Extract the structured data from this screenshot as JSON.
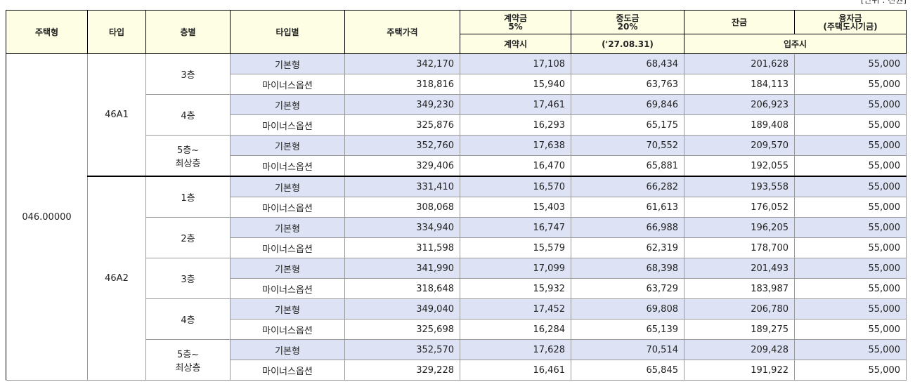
{
  "unit": "[단위 : 천원]",
  "header": {
    "house_type": "주택형",
    "type": "타입",
    "floor": "층별",
    "option": "타입별",
    "price": "주택가격",
    "deposit": "계약금",
    "deposit_rate": "5%",
    "middle": "중도금",
    "middle_rate": "20%",
    "balance": "잔금",
    "loan": "융자금",
    "loan_note": "(주택도시기금)",
    "deposit_when": "계약시",
    "middle_when": "('27.08.31)",
    "move_in": "입주시"
  },
  "house_type": "046.00000",
  "groups": [
    {
      "type": "46A1",
      "floors": [
        {
          "floor": [
            "3층"
          ],
          "rows": [
            {
              "option": "기본형",
              "values": [
                "342,170",
                "17,108",
                "68,434",
                "201,628",
                "55,000"
              ]
            },
            {
              "option": "마이너스옵션",
              "values": [
                "318,816",
                "15,940",
                "63,763",
                "184,113",
                "55,000"
              ]
            }
          ]
        },
        {
          "floor": [
            "4층"
          ],
          "rows": [
            {
              "option": "기본형",
              "values": [
                "349,230",
                "17,461",
                "69,846",
                "206,923",
                "55,000"
              ]
            },
            {
              "option": "마이너스옵션",
              "values": [
                "325,876",
                "16,293",
                "65,175",
                "189,408",
                "55,000"
              ]
            }
          ]
        },
        {
          "floor": [
            "5층~",
            "최상층"
          ],
          "rows": [
            {
              "option": "기본형",
              "values": [
                "352,760",
                "17,638",
                "70,552",
                "209,570",
                "55,000"
              ]
            },
            {
              "option": "마이너스옵션",
              "values": [
                "329,406",
                "16,470",
                "65,881",
                "192,055",
                "55,000"
              ]
            }
          ]
        }
      ]
    },
    {
      "type": "46A2",
      "floors": [
        {
          "floor": [
            "1층"
          ],
          "rows": [
            {
              "option": "기본형",
              "values": [
                "331,410",
                "16,570",
                "66,282",
                "193,558",
                "55,000"
              ]
            },
            {
              "option": "마이너스옵션",
              "values": [
                "308,068",
                "15,403",
                "61,613",
                "176,052",
                "55,000"
              ]
            }
          ]
        },
        {
          "floor": [
            "2층"
          ],
          "rows": [
            {
              "option": "기본형",
              "values": [
                "334,940",
                "16,747",
                "66,988",
                "196,205",
                "55,000"
              ]
            },
            {
              "option": "마이너스옵션",
              "values": [
                "311,598",
                "15,579",
                "62,319",
                "178,700",
                "55,000"
              ]
            }
          ]
        },
        {
          "floor": [
            "3층"
          ],
          "rows": [
            {
              "option": "기본형",
              "values": [
                "341,990",
                "17,099",
                "68,398",
                "201,493",
                "55,000"
              ]
            },
            {
              "option": "마이너스옵션",
              "values": [
                "318,648",
                "15,932",
                "63,729",
                "183,987",
                "55,000"
              ]
            }
          ]
        },
        {
          "floor": [
            "4층"
          ],
          "rows": [
            {
              "option": "기본형",
              "values": [
                "349,040",
                "17,452",
                "69,808",
                "206,780",
                "55,000"
              ]
            },
            {
              "option": "마이너스옵션",
              "values": [
                "325,698",
                "16,284",
                "65,139",
                "189,275",
                "55,000"
              ]
            }
          ]
        },
        {
          "floor": [
            "5층~",
            "최상층"
          ],
          "rows": [
            {
              "option": "기본형",
              "values": [
                "352,570",
                "17,628",
                "70,514",
                "209,428",
                "55,000"
              ]
            },
            {
              "option": "마이너스옵션",
              "values": [
                "329,228",
                "16,461",
                "65,845",
                "191,922",
                "55,000"
              ]
            }
          ]
        }
      ]
    }
  ]
}
